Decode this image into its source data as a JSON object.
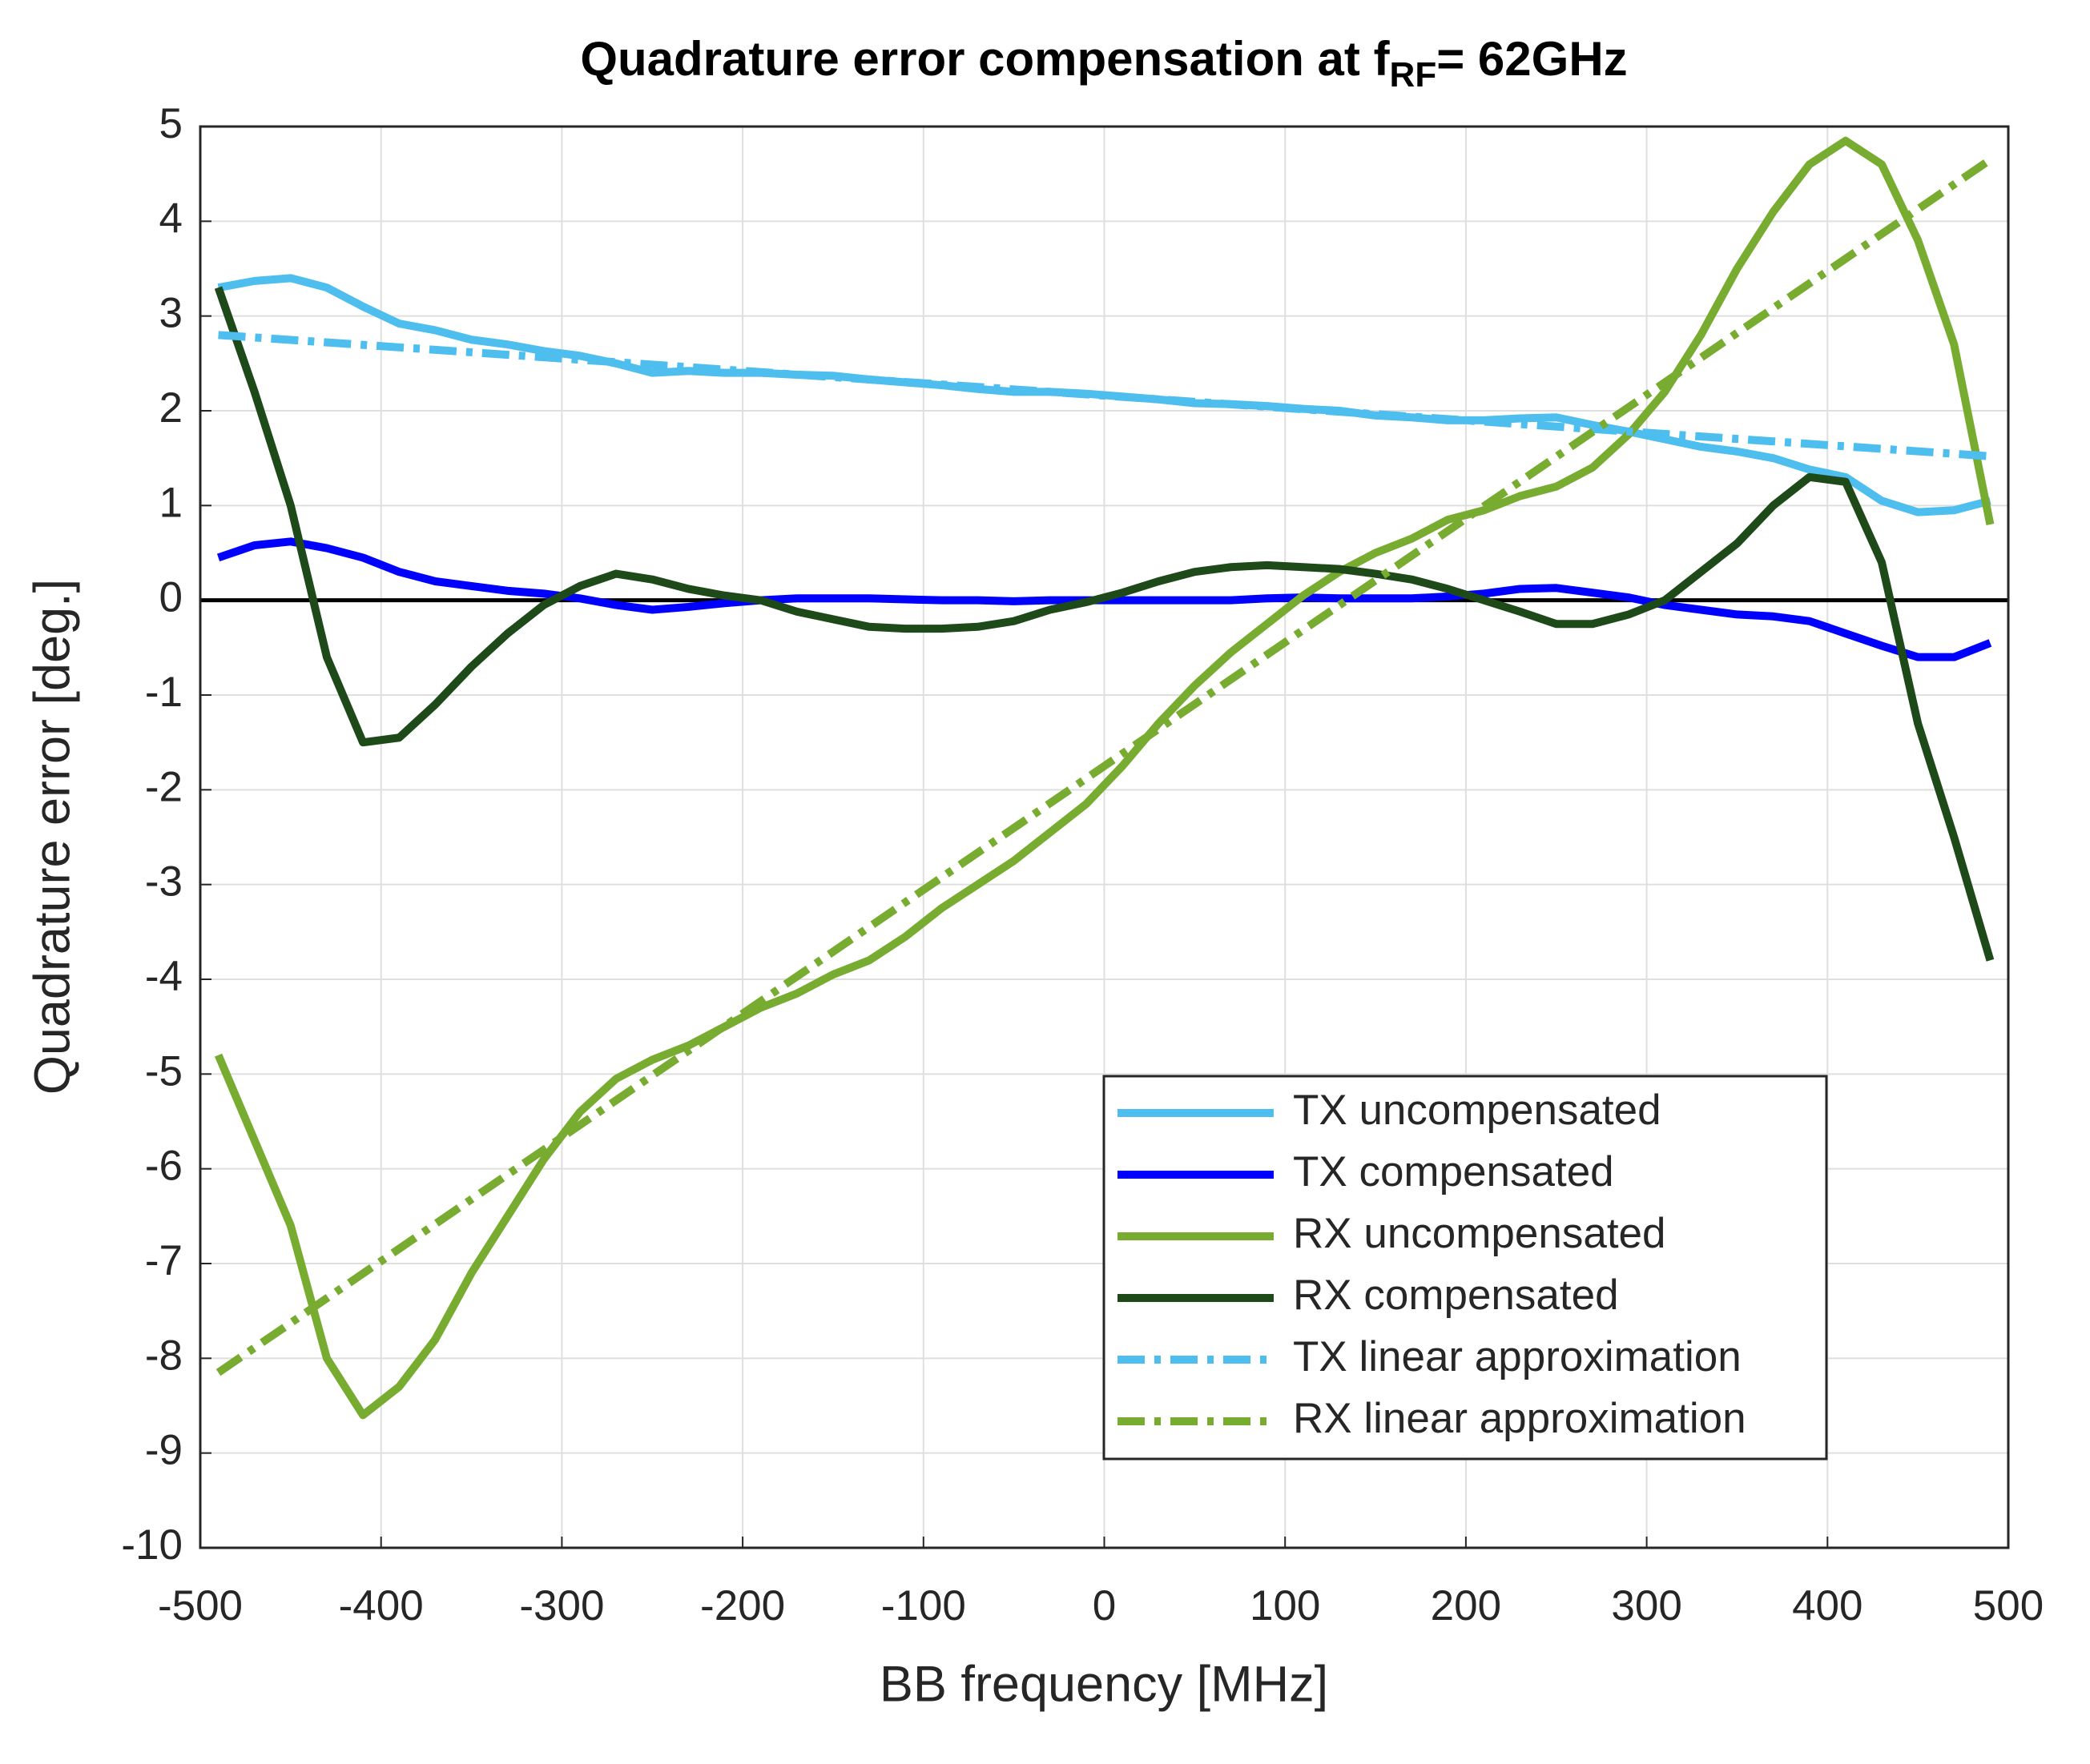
{
  "chart_data": {
    "type": "line",
    "title": [
      "Quadrature error compensation at f",
      "RF",
      "= 62GHz"
    ],
    "xlabel": "BB frequency [MHz]",
    "ylabel": "Quadrature error [deg.]",
    "x": [
      -490,
      -470,
      -450,
      -430,
      -410,
      -390,
      -370,
      -350,
      -330,
      -310,
      -290,
      -270,
      -250,
      -230,
      -210,
      -190,
      -170,
      -150,
      -130,
      -110,
      -90,
      -70,
      -50,
      -30,
      -10,
      10,
      30,
      50,
      70,
      90,
      110,
      130,
      150,
      170,
      190,
      210,
      230,
      250,
      270,
      290,
      310,
      330,
      350,
      370,
      390,
      410,
      430,
      450,
      470,
      490
    ],
    "series": [
      {
        "name": "TX uncompensated",
        "color": "#4dbeee",
        "style": "solid",
        "values": [
          3.3,
          3.37,
          3.4,
          3.3,
          3.1,
          2.92,
          2.85,
          2.75,
          2.7,
          2.63,
          2.58,
          2.5,
          2.4,
          2.42,
          2.4,
          2.4,
          2.38,
          2.37,
          2.33,
          2.3,
          2.27,
          2.23,
          2.2,
          2.2,
          2.18,
          2.15,
          2.12,
          2.08,
          2.07,
          2.05,
          2.02,
          2.0,
          1.95,
          1.93,
          1.9,
          1.9,
          1.92,
          1.93,
          1.85,
          1.78,
          1.7,
          1.62,
          1.57,
          1.5,
          1.38,
          1.3,
          1.05,
          0.93,
          0.95,
          1.05
        ]
      },
      {
        "name": "TX compensated",
        "color": "#0000ff",
        "style": "solid",
        "values": [
          0.45,
          0.58,
          0.62,
          0.55,
          0.45,
          0.3,
          0.2,
          0.15,
          0.1,
          0.07,
          0.02,
          -0.05,
          -0.1,
          -0.07,
          -0.03,
          0,
          0.02,
          0.02,
          0.02,
          0.01,
          0,
          0,
          -0.01,
          0,
          0,
          0,
          0,
          0,
          0,
          0.02,
          0.03,
          0.02,
          0.02,
          0.02,
          0.04,
          0.07,
          0.12,
          0.13,
          0.08,
          0.03,
          -0.05,
          -0.1,
          -0.15,
          -0.17,
          -0.22,
          -0.35,
          -0.48,
          -0.6,
          -0.6,
          -0.45
        ]
      },
      {
        "name": "RX uncompensated",
        "color": "#77ac30",
        "style": "solid",
        "values": [
          -4.8,
          -5.7,
          -6.6,
          -8.0,
          -8.6,
          -8.3,
          -7.8,
          -7.1,
          -6.5,
          -5.9,
          -5.4,
          -5.05,
          -4.85,
          -4.7,
          -4.5,
          -4.3,
          -4.15,
          -3.95,
          -3.8,
          -3.55,
          -3.25,
          -3.0,
          -2.75,
          -2.45,
          -2.15,
          -1.75,
          -1.3,
          -0.9,
          -0.55,
          -0.25,
          0.05,
          0.3,
          0.5,
          0.65,
          0.85,
          0.95,
          1.1,
          1.2,
          1.4,
          1.75,
          2.2,
          2.8,
          3.5,
          4.1,
          4.6,
          4.85,
          4.6,
          3.8,
          2.7,
          0.8
        ]
      },
      {
        "name": "RX compensated",
        "color": "#1e4a1a",
        "style": "solid",
        "values": [
          3.3,
          2.2,
          1.0,
          -0.6,
          -1.5,
          -1.45,
          -1.1,
          -0.7,
          -0.35,
          -0.05,
          0.15,
          0.28,
          0.22,
          0.12,
          0.05,
          0,
          -0.12,
          -0.2,
          -0.28,
          -0.3,
          -0.3,
          -0.28,
          -0.22,
          -0.1,
          -0.02,
          0.08,
          0.2,
          0.3,
          0.35,
          0.37,
          0.35,
          0.33,
          0.28,
          0.22,
          0.12,
          0,
          -0.12,
          -0.25,
          -0.25,
          -0.15,
          0,
          0.3,
          0.6,
          1.0,
          1.3,
          1.25,
          0.4,
          -1.3,
          -2.5,
          -3.8
        ]
      },
      {
        "name": "TX linear approximation",
        "color": "#4dbeee",
        "style": "dashdot",
        "x": [
          -490,
          490
        ],
        "values": [
          2.8,
          1.52
        ]
      },
      {
        "name": "RX linear approximation",
        "color": "#77ac30",
        "style": "dashdot",
        "x": [
          -490,
          490
        ],
        "values": [
          -8.15,
          4.65
        ]
      }
    ],
    "reference_line": 0,
    "xlim": [
      -500,
      500
    ],
    "xticks": [
      -500,
      -400,
      -300,
      -200,
      -100,
      0,
      100,
      200,
      300,
      400,
      500
    ],
    "ylim": [
      -10,
      5
    ],
    "yticks": [
      -10,
      -9,
      -8,
      -7,
      -6,
      -5,
      -4,
      -3,
      -2,
      -1,
      0,
      1,
      2,
      3,
      4,
      5
    ],
    "grid": true,
    "legend": "southeast"
  }
}
